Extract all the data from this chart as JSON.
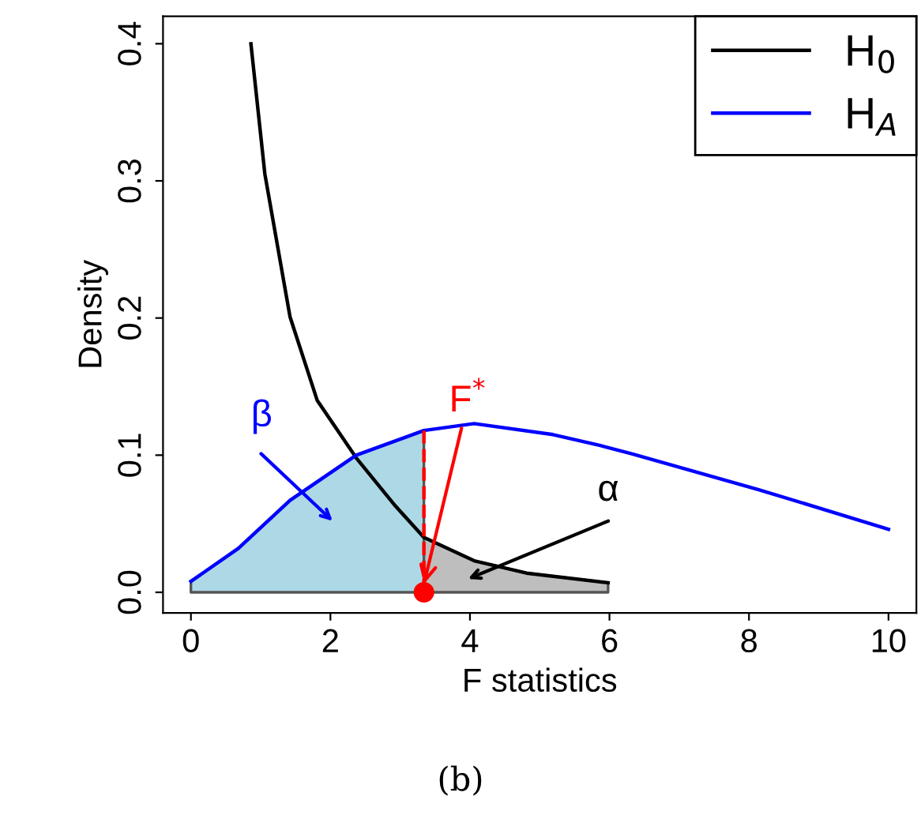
{
  "chart_data": {
    "type": "line",
    "xlabel": "F statistics",
    "ylabel": "Density",
    "xlim": [
      -0.4,
      10.4
    ],
    "ylim": [
      -0.015,
      0.42
    ],
    "xticks": [
      0,
      2,
      4,
      6,
      8,
      10
    ],
    "yticks": [
      {
        "value": 0,
        "label": "0.0"
      },
      {
        "value": 0.1,
        "label": "0.1"
      },
      {
        "value": 0.2,
        "label": "0.2"
      },
      {
        "value": 0.3,
        "label": "0.3"
      },
      {
        "value": 0.4,
        "label": "0.4"
      }
    ],
    "grid": false,
    "legend": "top right",
    "series": [
      {
        "type": "area",
        "color": "#add8e6",
        "x": [
          0,
          0.68,
          1.42,
          2.37,
          3.34
        ],
        "values": [
          0.008,
          0.032,
          0.067,
          0.1,
          0.118
        ]
      },
      {
        "type": "area",
        "color": "#bebebe",
        "x": [
          3.34,
          4.06,
          4.81,
          5.98
        ],
        "values": [
          0.04,
          0.023,
          0.014,
          0.007
        ]
      },
      {
        "name": "H$_{0}$",
        "color": "#000000",
        "x": [
          0.86,
          1.06,
          1.42,
          1.81,
          2.37,
          2.93,
          3.34,
          4.06,
          4.81,
          5.98
        ],
        "values": [
          0.4,
          0.305,
          0.201,
          0.14,
          0.098,
          0.063,
          0.04,
          0.023,
          0.014,
          0.007
        ]
      },
      {
        "name": "H$_{A}$",
        "color": "#0000ff",
        "x": [
          0,
          0.68,
          1.42,
          2.37,
          3.34,
          4.06,
          5.19,
          5.87,
          6.32,
          8.13,
          10
        ],
        "values": [
          0.008,
          0.032,
          0.067,
          0.1,
          0.118,
          0.123,
          0.115,
          0.107,
          0.101,
          0.075,
          0.046
        ]
      },
      {
        "color": "#ff0000",
        "line_style": "dashed",
        "x": [
          3.34,
          3.34
        ],
        "values": [
          0,
          0.118
        ]
      },
      {
        "type": "scatter",
        "color": "#ff0000",
        "marker": "circle",
        "x": [
          3.34
        ],
        "values": [
          0
        ]
      }
    ],
    "annotations": [
      "β",
      {
        "text": "F$^{*}$",
        "x": 3.34,
        "y": 0.006
      },
      "α",
      "(b)"
    ]
  }
}
